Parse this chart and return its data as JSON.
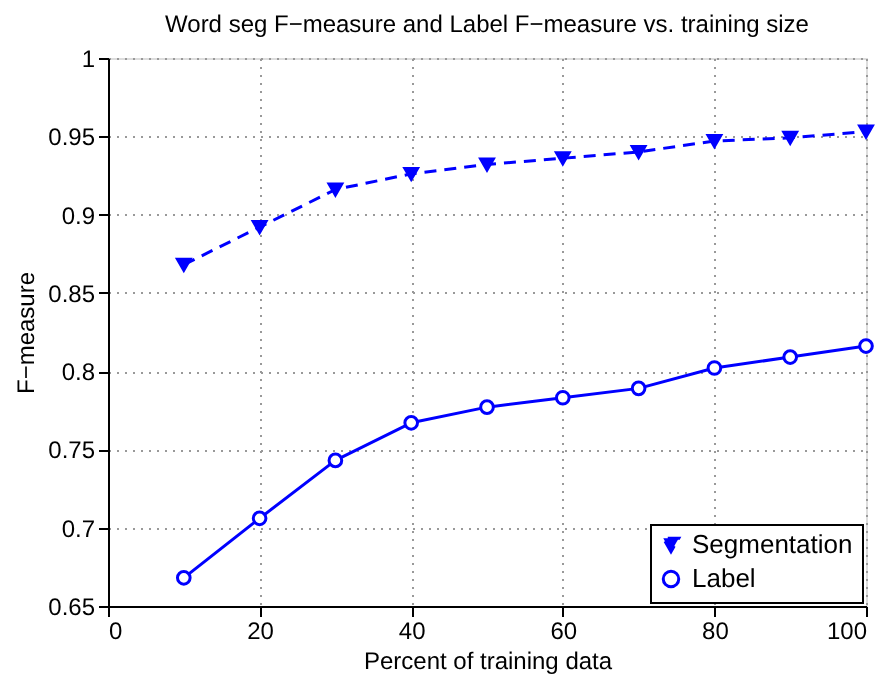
{
  "chart_data": {
    "type": "line",
    "title": "Word seg F−measure and Label F−measure vs. training size",
    "xlabel": "Percent of training data",
    "ylabel": "F−measure",
    "x": [
      10,
      20,
      30,
      40,
      50,
      60,
      70,
      80,
      90,
      100
    ],
    "series": [
      {
        "name": "Segmentation",
        "color": "#0000ff",
        "marker": "triangle",
        "line_style": "dashed",
        "values": [
          0.868,
          0.892,
          0.916,
          0.926,
          0.932,
          0.936,
          0.94,
          0.947,
          0.949,
          0.953
        ]
      },
      {
        "name": "Label",
        "color": "#0000ff",
        "marker": "circle",
        "line_style": "solid",
        "values": [
          0.668,
          0.706,
          0.743,
          0.767,
          0.777,
          0.783,
          0.789,
          0.802,
          0.809,
          0.816
        ]
      }
    ],
    "xlim": [
      0,
      100
    ],
    "xticks": [
      0,
      20,
      40,
      60,
      80,
      100
    ],
    "ylim": [
      0.65,
      1
    ],
    "yticks": [
      0.65,
      0.7,
      0.75,
      0.8,
      0.85,
      0.9,
      0.95,
      1
    ],
    "grid": true,
    "legend": "bottom right"
  }
}
